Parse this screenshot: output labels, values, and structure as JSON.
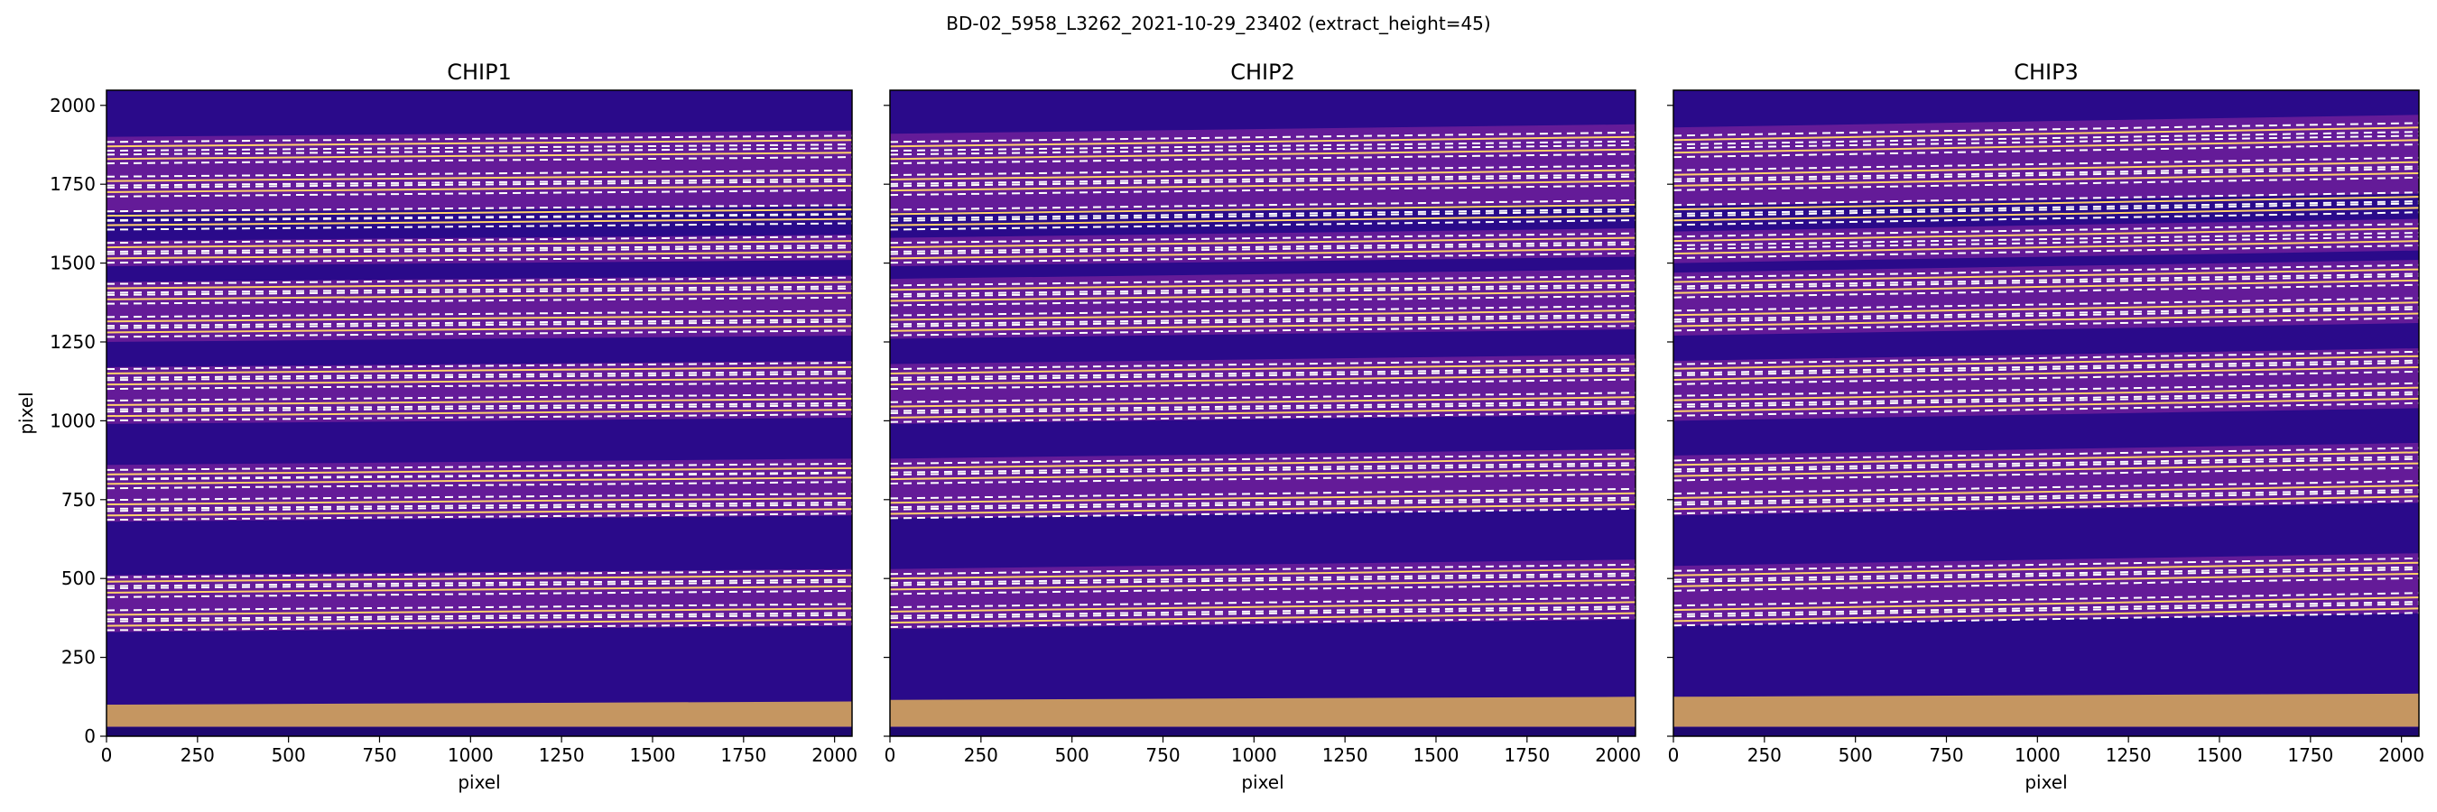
{
  "figure_title": "BD-02_5958_L3262_2021-10-29_23402  (extract_height=45)",
  "colors": {
    "background": "#2a0a8a",
    "order_band": "#6e1f9a",
    "order_center": "#ffd26a",
    "edge_line": "#ffffff",
    "flux_bottom": "#d6a55c"
  },
  "chart_data": [
    {
      "type": "heatmap",
      "title": "CHIP1",
      "xlabel": "pixel",
      "ylabel": "pixel",
      "xlim": [
        0,
        2048
      ],
      "ylim": [
        0,
        2048
      ],
      "xticks": [
        0,
        250,
        500,
        750,
        1000,
        1250,
        1500,
        1750,
        2000
      ],
      "yticks": [
        0,
        250,
        500,
        750,
        1000,
        1250,
        1500,
        1750,
        2000
      ],
      "trace_centers": [
        1870,
        1830,
        1760,
        1725,
        1650,
        1620,
        1550,
        1515,
        1420,
        1385,
        1315,
        1280,
        1150,
        1115,
        1050,
        1015,
        830,
        800,
        735,
        700,
        490,
        455,
        385,
        350
      ],
      "tilt_per_2048": 20,
      "bands": [
        [
          1660,
          1900
        ],
        [
          1490,
          1570
        ],
        [
          1250,
          1440
        ],
        [
          990,
          1170
        ],
        [
          680,
          860
        ],
        [
          330,
          510
        ]
      ],
      "bright_band": [
        30,
        110
      ]
    },
    {
      "type": "heatmap",
      "title": "CHIP2",
      "xlabel": "pixel",
      "ylabel": "",
      "xlim": [
        0,
        2048
      ],
      "ylim": [
        0,
        2048
      ],
      "xticks": [
        0,
        250,
        500,
        750,
        1000,
        1250,
        1500,
        1750,
        2000
      ],
      "yticks": [],
      "trace_centers": [
        1870,
        1830,
        1765,
        1730,
        1655,
        1620,
        1550,
        1515,
        1415,
        1380,
        1320,
        1285,
        1150,
        1115,
        1045,
        1010,
        850,
        815,
        740,
        705,
        500,
        465,
        395,
        360
      ],
      "tilt_per_2048": 30,
      "bands": [
        [
          1660,
          1910
        ],
        [
          1490,
          1580
        ],
        [
          1260,
          1450
        ],
        [
          990,
          1180
        ],
        [
          690,
          880
        ],
        [
          340,
          530
        ]
      ],
      "bright_band": [
        30,
        125
      ]
    },
    {
      "type": "heatmap",
      "title": "CHIP3",
      "xlabel": "pixel",
      "ylabel": "",
      "xlim": [
        0,
        2048
      ],
      "ylim": [
        0,
        2048
      ],
      "xticks": [
        0,
        250,
        500,
        750,
        1000,
        1250,
        1500,
        1750,
        2000
      ],
      "yticks": [],
      "trace_centers": [
        1890,
        1850,
        1780,
        1745,
        1670,
        1635,
        1570,
        1530,
        1440,
        1405,
        1335,
        1300,
        1165,
        1130,
        1065,
        1030,
        860,
        825,
        755,
        720,
        510,
        475,
        400,
        365
      ],
      "tilt_per_2048": 40,
      "bands": [
        [
          1680,
          1930
        ],
        [
          1500,
          1600
        ],
        [
          1270,
          1470
        ],
        [
          1000,
          1190
        ],
        [
          700,
          890
        ],
        [
          350,
          540
        ]
      ],
      "bright_band": [
        30,
        135
      ]
    }
  ]
}
